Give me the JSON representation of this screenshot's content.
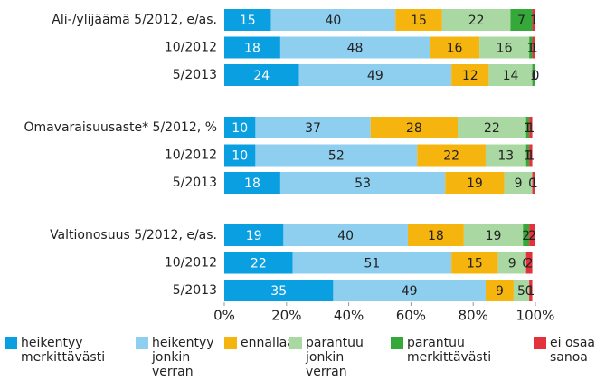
{
  "chart_data": {
    "type": "stacked-bar-horizontal",
    "categories": [
      "Ali-/ylijäämä 5/2012, e/as.",
      "10/2012",
      "5/2013",
      "Omavaraisuusaste* 5/2012, %",
      "10/2012",
      "5/2013",
      "Valtionosuus 5/2012, e/as.",
      "10/2012",
      "5/2013"
    ],
    "series": [
      {
        "name": "heikentyy merkittävästi",
        "color": "#0a9fe0",
        "values": [
          15,
          18,
          24,
          10,
          10,
          18,
          19,
          22,
          35
        ]
      },
      {
        "name": "heikentyy jonkin verran",
        "color": "#8ecff0",
        "values": [
          40,
          48,
          49,
          37,
          52,
          53,
          40,
          51,
          49
        ]
      },
      {
        "name": "ennallaan",
        "color": "#f6b40e",
        "values": [
          15,
          16,
          12,
          28,
          22,
          19,
          18,
          15,
          9
        ]
      },
      {
        "name": "parantuu jonkin verran",
        "color": "#a9d8a2",
        "values": [
          22,
          16,
          14,
          22,
          13,
          9,
          19,
          9,
          5
        ]
      },
      {
        "name": "parantuu merkittävästi",
        "color": "#35a83a",
        "values": [
          7,
          1,
          1,
          1,
          1,
          0,
          2,
          0,
          0
        ]
      },
      {
        "name": "ei osaa sanoa",
        "color": "#e4323c",
        "values": [
          1,
          1,
          0,
          1,
          1,
          1,
          2,
          2,
          1
        ]
      }
    ],
    "xlim": [
      0,
      100
    ],
    "xticks": [
      {
        "value": 0,
        "label": "0%"
      },
      {
        "value": 20,
        "label": "20%"
      },
      {
        "value": 40,
        "label": "40%"
      },
      {
        "value": 60,
        "label": "60%"
      },
      {
        "value": 80,
        "label": "80%"
      },
      {
        "value": 100,
        "label": "100%"
      }
    ]
  }
}
